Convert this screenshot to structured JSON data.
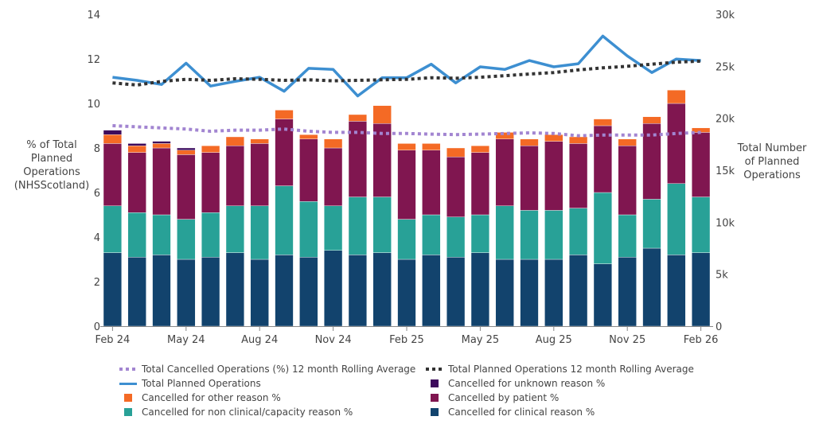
{
  "chart_data": {
    "type": "bar",
    "stacked": true,
    "title": "",
    "ylabel": "% of Total Planned Operations (NHSScotland)",
    "y2label": "Total Number of Planned Operations",
    "ylim": [
      0,
      14
    ],
    "y2lim": [
      0,
      30000
    ],
    "yticks": [
      "0",
      "2",
      "4",
      "6",
      "8",
      "10",
      "12",
      "14"
    ],
    "y2ticks": [
      "0",
      "5k",
      "10k",
      "15k",
      "20k",
      "25k",
      "30k"
    ],
    "xticks": [
      "Feb 24",
      "May 24",
      "Aug 24",
      "Nov 24",
      "Feb 25",
      "May 25",
      "Aug 25",
      "Nov 25",
      "Feb 26"
    ],
    "categories": [
      "Feb 24",
      "Mar 24",
      "Apr 24",
      "May 24",
      "Jun 24",
      "Jul 24",
      "Aug 24",
      "Sep 24",
      "Oct 24",
      "Nov 24",
      "Dec 24",
      "Jan 25",
      "Feb 25",
      "Mar 25",
      "Apr 25",
      "May 25",
      "Jun 25",
      "Jul 25",
      "Aug 25",
      "Sep 25",
      "Oct 25",
      "Nov 25",
      "Dec 25",
      "Jan 26",
      "Feb 26"
    ],
    "grid": false,
    "legend_position": "bottom",
    "series": [
      {
        "name": "Cancelled for clinical reason %",
        "kind": "bar",
        "axis": "left",
        "color": "#12436D",
        "values": [
          3.3,
          3.1,
          3.2,
          3.0,
          3.1,
          3.3,
          3.0,
          3.2,
          3.1,
          3.4,
          3.2,
          3.3,
          3.0,
          3.2,
          3.1,
          3.3,
          3.0,
          3.0,
          3.0,
          3.2,
          2.8,
          3.1,
          3.5,
          3.2,
          3.3
        ]
      },
      {
        "name": "Cancelled for non clinical/capacity reason %",
        "kind": "bar",
        "axis": "left",
        "color": "#28A197",
        "values": [
          2.1,
          2.0,
          1.8,
          1.8,
          2.0,
          2.1,
          2.4,
          3.1,
          2.5,
          2.0,
          2.6,
          2.5,
          1.8,
          1.8,
          1.8,
          1.7,
          2.4,
          2.2,
          2.2,
          2.1,
          3.2,
          1.9,
          2.2,
          3.2,
          2.5
        ]
      },
      {
        "name": "Cancelled by patient %",
        "kind": "bar",
        "axis": "left",
        "color": "#801650",
        "values": [
          2.8,
          2.7,
          3.0,
          2.9,
          2.7,
          2.7,
          2.8,
          3.0,
          2.8,
          2.6,
          3.4,
          3.3,
          3.1,
          2.9,
          2.7,
          2.8,
          3.0,
          2.9,
          3.1,
          2.9,
          3.0,
          3.1,
          3.4,
          3.6,
          2.9
        ]
      },
      {
        "name": "Cancelled for other reason %",
        "kind": "bar",
        "axis": "left",
        "color": "#F46A25",
        "values": [
          0.4,
          0.3,
          0.2,
          0.2,
          0.3,
          0.4,
          0.2,
          0.4,
          0.2,
          0.4,
          0.3,
          0.8,
          0.3,
          0.3,
          0.4,
          0.3,
          0.3,
          0.3,
          0.3,
          0.3,
          0.3,
          0.3,
          0.3,
          0.6,
          0.2
        ]
      },
      {
        "name": "Cancelled for unknown reason %",
        "kind": "bar",
        "axis": "left",
        "color": "#3D0A5C",
        "values": [
          0.2,
          0.1,
          0.1,
          0.1,
          0,
          0,
          0,
          0,
          0,
          0,
          0,
          0,
          0,
          0,
          0,
          0,
          0,
          0,
          0,
          0,
          0,
          0,
          0,
          0,
          0
        ]
      },
      {
        "name": "Total Planned Operations",
        "kind": "line",
        "axis": "right",
        "color": "#3D8FD1",
        "dash": "solid",
        "values": [
          23950,
          23650,
          23250,
          25300,
          23100,
          23550,
          23950,
          22600,
          24800,
          24700,
          22150,
          23900,
          23900,
          25200,
          23400,
          24950,
          24700,
          25550,
          24950,
          25250,
          27900,
          26000,
          24400,
          25700,
          25550
        ]
      },
      {
        "name": "Total Planned Operations 12 month Rolling Average",
        "kind": "line",
        "axis": "right",
        "color": "#333333",
        "dash": "dot",
        "values": [
          23400,
          23200,
          23550,
          23750,
          23650,
          23800,
          23750,
          23650,
          23700,
          23600,
          23650,
          23700,
          23750,
          23900,
          23850,
          23950,
          24100,
          24250,
          24400,
          24650,
          24850,
          25000,
          25200,
          25400,
          25500
        ]
      },
      {
        "name": "Total Cancelled Operations (%) 12 month Rolling Average",
        "kind": "line",
        "axis": "left",
        "color": "#A285D1",
        "dash": "dot",
        "values": [
          9.0,
          8.95,
          8.9,
          8.85,
          8.75,
          8.8,
          8.8,
          8.85,
          8.75,
          8.7,
          8.7,
          8.65,
          8.65,
          8.62,
          8.6,
          8.62,
          8.65,
          8.68,
          8.65,
          8.55,
          8.58,
          8.58,
          8.58,
          8.65,
          8.7
        ]
      }
    ],
    "legend": [
      {
        "label": "Total Cancelled Operations (%) 12 month Rolling Average",
        "style": "dot",
        "color": "#A285D1"
      },
      {
        "label": "Total Planned Operations 12 month Rolling Average",
        "style": "dot",
        "color": "#333333"
      },
      {
        "label": "Total Planned Operations",
        "style": "line",
        "color": "#3D8FD1"
      },
      {
        "label": "Cancelled for unknown reason %",
        "style": "square",
        "color": "#3D0A5C"
      },
      {
        "label": "Cancelled for other reason %",
        "style": "square",
        "color": "#F46A25"
      },
      {
        "label": "Cancelled by patient %",
        "style": "square",
        "color": "#801650"
      },
      {
        "label": "Cancelled for non clinical/capacity reason %",
        "style": "square",
        "color": "#28A197"
      },
      {
        "label": "Cancelled for clinical reason %",
        "style": "square",
        "color": "#12436D"
      }
    ]
  },
  "axes": {
    "left_title_lines": [
      "% of Total",
      "Planned",
      "Operations",
      "(NHSScotland)"
    ],
    "right_title_lines": [
      "Total Number",
      "of Planned",
      "Operations"
    ]
  }
}
